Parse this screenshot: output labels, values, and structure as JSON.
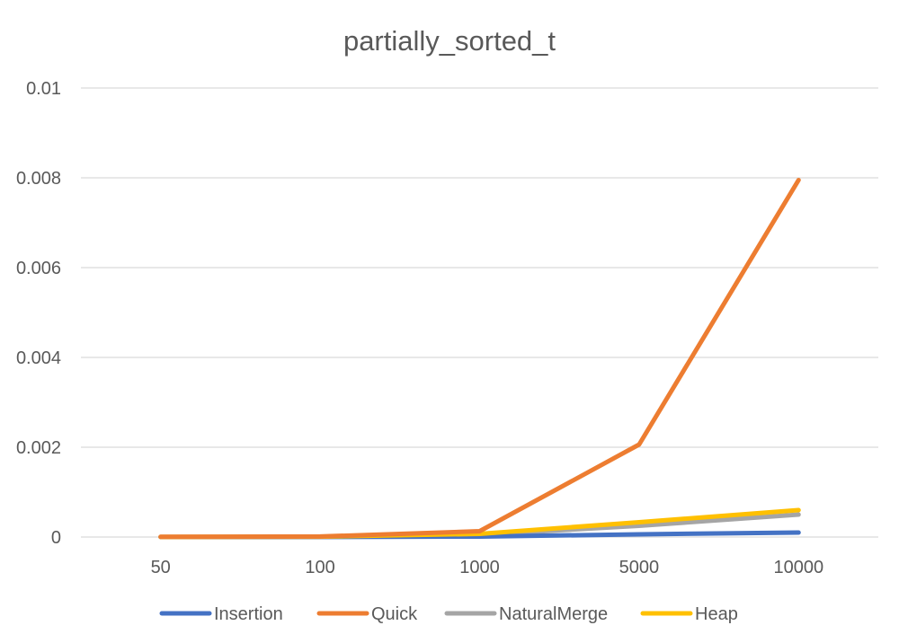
{
  "chart_data": {
    "type": "line",
    "title": "partially_sorted_t",
    "xlabel": "",
    "ylabel": "",
    "categories": [
      "50",
      "100",
      "1000",
      "5000",
      "10000"
    ],
    "ylim": [
      0,
      0.01
    ],
    "yticks": [
      "0",
      "0.002",
      "0.004",
      "0.006",
      "0.008",
      "0.01"
    ],
    "ytick_values": [
      0,
      0.002,
      0.004,
      0.006,
      0.008,
      0.01
    ],
    "grid": true,
    "legend_position": "bottom",
    "series": [
      {
        "name": "Insertion",
        "color": "#4472C4",
        "values": [
          1e-06,
          2e-06,
          1e-05,
          6e-05,
          0.0001
        ]
      },
      {
        "name": "Quick",
        "color": "#ED7D31",
        "values": [
          4e-06,
          1.2e-05,
          0.00013,
          0.00206,
          0.00795
        ]
      },
      {
        "name": "NaturalMerge",
        "color": "#A5A5A5",
        "values": [
          3e-06,
          6e-06,
          5e-05,
          0.00025,
          0.0005
        ]
      },
      {
        "name": "Heap",
        "color": "#FFC000",
        "values": [
          3e-06,
          7e-06,
          7e-05,
          0.00033,
          0.0006
        ]
      }
    ]
  }
}
